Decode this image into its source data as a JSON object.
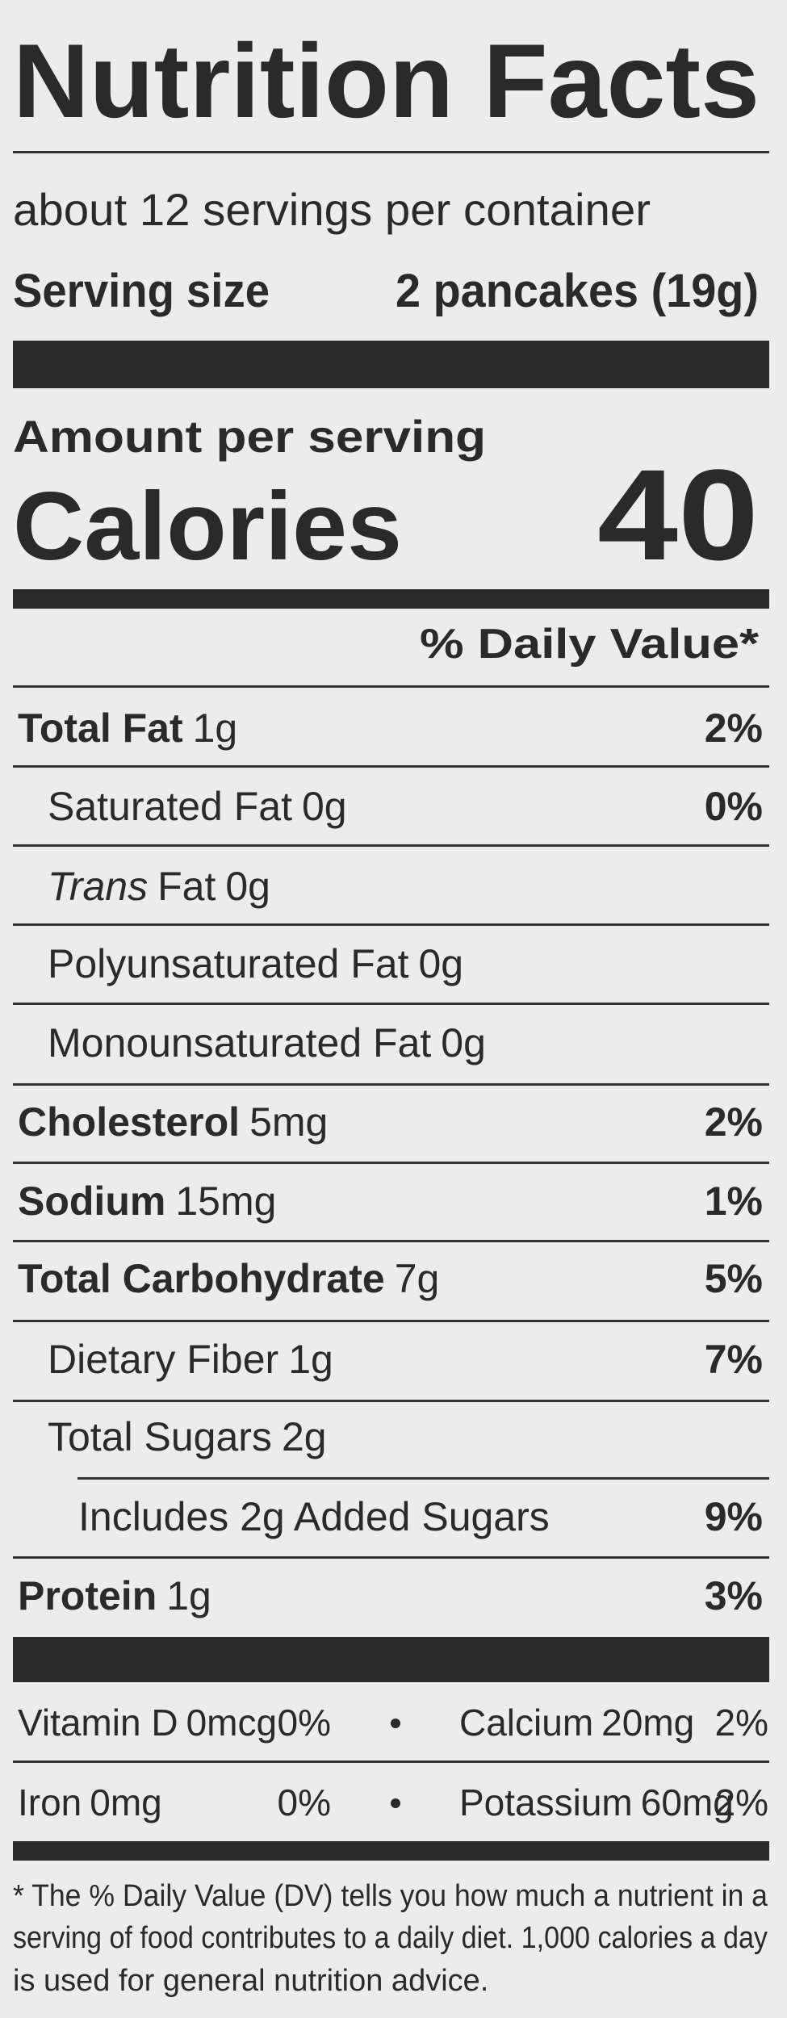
{
  "title": "Nutrition Facts",
  "servings": "about 12 servings per container",
  "serving_size": {
    "label": "Serving size",
    "value": "2 pancakes (19g)"
  },
  "amount_per_serving": "Amount per serving",
  "calories": {
    "label": "Calories",
    "value": "40"
  },
  "dv_header": "% Daily Value*",
  "rows": [
    {
      "name": "Total Fat",
      "amount": "1g",
      "dv": "2%"
    },
    {
      "name": "Saturated Fat",
      "amount": "0g",
      "dv": "0%"
    },
    {
      "italic": "Trans",
      "name": "Fat",
      "amount": "0g"
    },
    {
      "name": "Polyunsaturated Fat",
      "amount": "0g"
    },
    {
      "name": "Monounsaturated Fat",
      "amount": "0g"
    },
    {
      "name": "Cholesterol",
      "amount": "5mg",
      "dv": "2%"
    },
    {
      "name": "Sodium",
      "amount": "15mg",
      "dv": "1%"
    },
    {
      "name": "Total Carbohydrate",
      "amount": "7g",
      "dv": "5%"
    },
    {
      "name": "Dietary Fiber",
      "amount": "1g",
      "dv": "7%"
    },
    {
      "name": "Total Sugars",
      "amount": "2g"
    },
    {
      "name": "Includes 2g Added Sugars",
      "dv": "9%"
    },
    {
      "name": "Protein",
      "amount": "1g",
      "dv": "3%"
    }
  ],
  "vitamins": [
    {
      "name": "Vitamin D",
      "amount": "0mcg",
      "dv": "0%"
    },
    {
      "name": "Calcium",
      "amount": "20mg",
      "dv": "2%"
    },
    {
      "name": "Iron",
      "amount": "0mg",
      "dv": "0%"
    },
    {
      "name": "Potassium",
      "amount": "60mg",
      "dv": "2%"
    }
  ],
  "footnote": [
    "* The % Daily Value (DV) tells you how much a nutrient in a",
    "serving of food contributes to a daily diet. 1,000 calories a day",
    "is used for general nutrition advice."
  ]
}
